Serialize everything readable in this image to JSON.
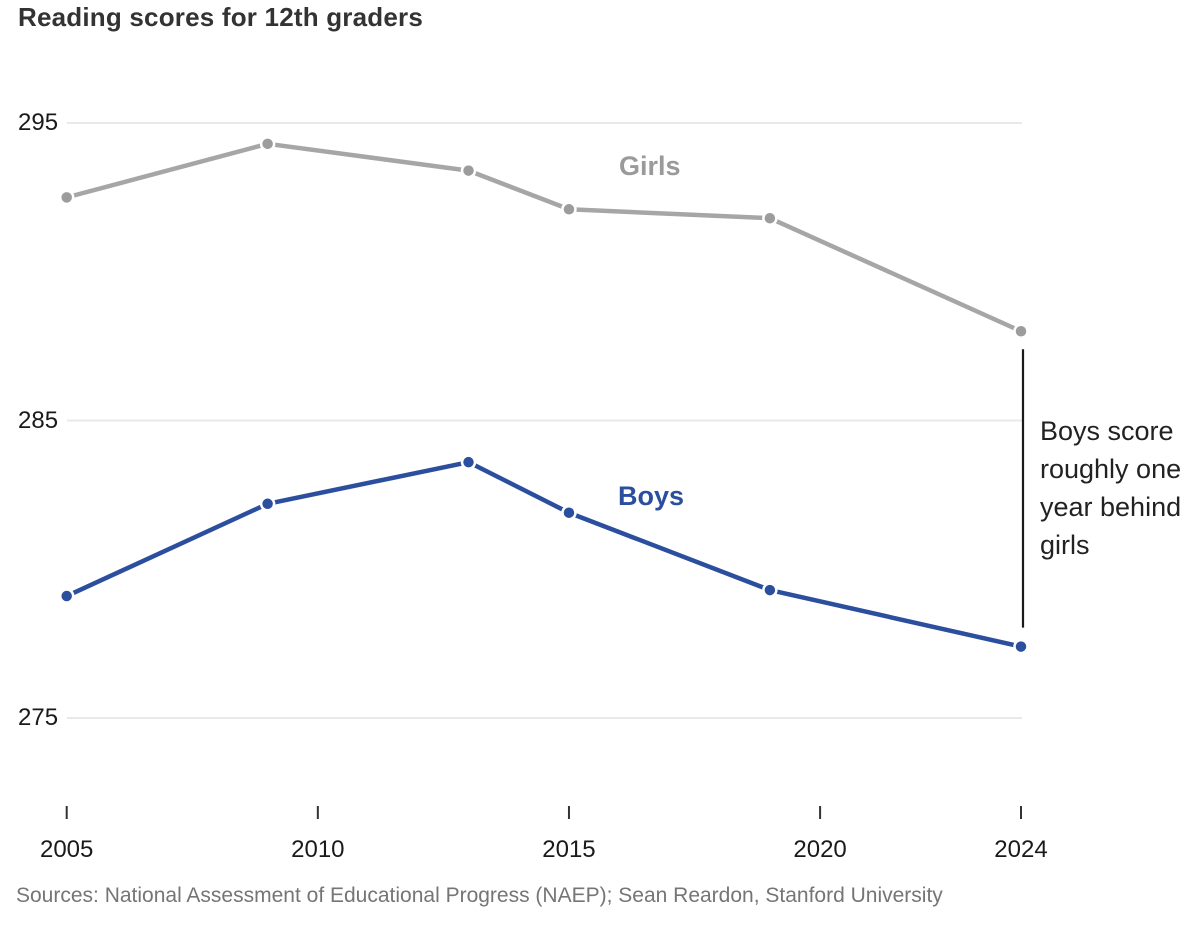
{
  "title": "Reading scores for 12th graders",
  "source_line": "Sources: National Assessment of Educational Progress (NAEP); Sean Reardon, Stanford University",
  "annotation": {
    "text": "Boys score roughly one year behind girls",
    "lines": [
      "Boys score",
      "roughly one",
      "year behind",
      "girls"
    ]
  },
  "colors": {
    "boys_blue": "#2b4f9e",
    "girls_line_gray": "#a6a6a6",
    "girls_point_gray": "#9c9c9c",
    "girls_label_gray": "#9a9a9a",
    "title_text": "#333333",
    "axis_text": "#1a1a1a",
    "source_text": "#757575",
    "gridline": "#e9e9e9",
    "annotation_line": "#1a1a1a",
    "annotation_text": "#222222",
    "tick_mark": "#333333"
  },
  "chart_data": {
    "type": "line",
    "title": "Reading scores for 12th graders",
    "x": [
      2005,
      2009,
      2013,
      2015,
      2019,
      2024
    ],
    "series": [
      {
        "name": "Girls",
        "values": [
          292.5,
          294.3,
          293.4,
          292.1,
          291.8,
          288.0
        ]
      },
      {
        "name": "Boys",
        "values": [
          279.1,
          282.2,
          283.6,
          281.9,
          279.3,
          277.4
        ]
      }
    ],
    "xlabel": "",
    "ylabel": "",
    "xlim": [
      2005,
      2024
    ],
    "ylim": [
      273,
      296.5
    ],
    "yticks": [
      295,
      285,
      275
    ],
    "xticks": [
      2005,
      2010,
      2015,
      2020,
      2024
    ],
    "grid": "horizontal-only",
    "legend": "inline-series-labels",
    "annotation_note": "Boys score roughly one year behind girls (bracket at 2024 gap)"
  }
}
